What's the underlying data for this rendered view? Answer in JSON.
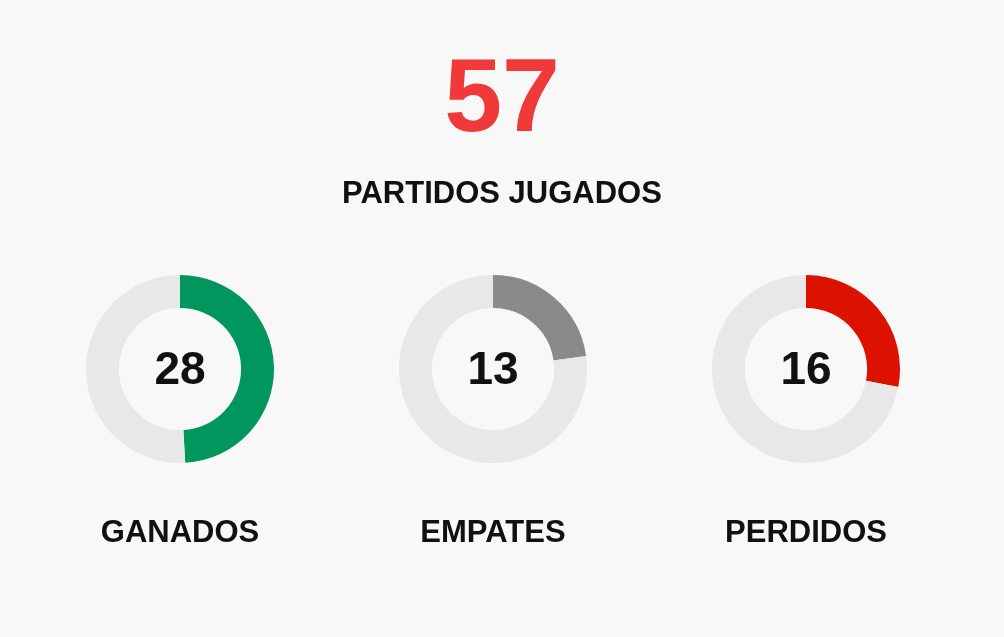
{
  "chart_data": [
    {
      "type": "other",
      "title": "57",
      "subtitle": "PARTIDOS JUGADOS"
    },
    {
      "type": "donut",
      "categories": [
        null,
        null
      ],
      "values": [
        28,
        29
      ],
      "colors": [
        "#00965e",
        "#e8e8e8"
      ],
      "value_labels": [
        "28",
        null
      ],
      "xlabel": "GANADOS"
    },
    {
      "type": "donut",
      "categories": [
        null,
        null
      ],
      "values": [
        13,
        44
      ],
      "colors": [
        "#8a8a8a",
        "#e8e8e8"
      ],
      "value_labels": [
        "13",
        null
      ],
      "xlabel": "EMPATES"
    },
    {
      "type": "donut",
      "categories": [
        null,
        null
      ],
      "values": [
        16,
        41
      ],
      "colors": [
        "#dd1100",
        "#e8e8e8"
      ],
      "value_labels": [
        "16",
        null
      ],
      "xlabel": "PERDIDOS"
    }
  ]
}
